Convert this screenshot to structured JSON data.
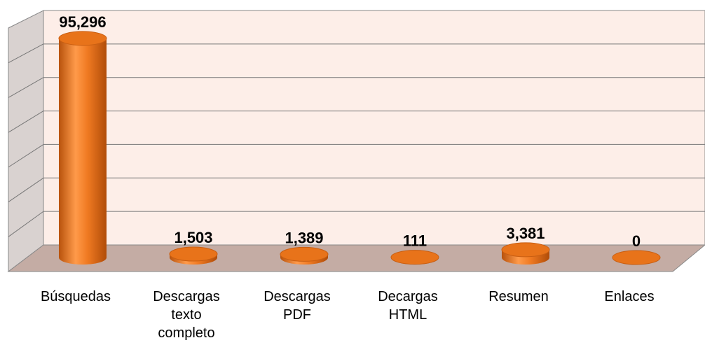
{
  "chart_data": {
    "type": "bar",
    "categories": [
      "Búsquedas",
      "Descargas texto completo",
      "Descargas PDF",
      "Decargas HTML",
      "Resumen",
      "Enlaces"
    ],
    "values": [
      95296,
      1503,
      1389,
      111,
      3381,
      0
    ],
    "value_labels": [
      "95,296",
      "1,503",
      "1,389",
      "111",
      "3,381",
      "0"
    ],
    "color": "#e8731a",
    "ylim": [
      0,
      105000
    ],
    "yticks": [
      0,
      15000,
      30000,
      45000,
      60000,
      75000,
      90000,
      105000
    ],
    "grid": true
  }
}
